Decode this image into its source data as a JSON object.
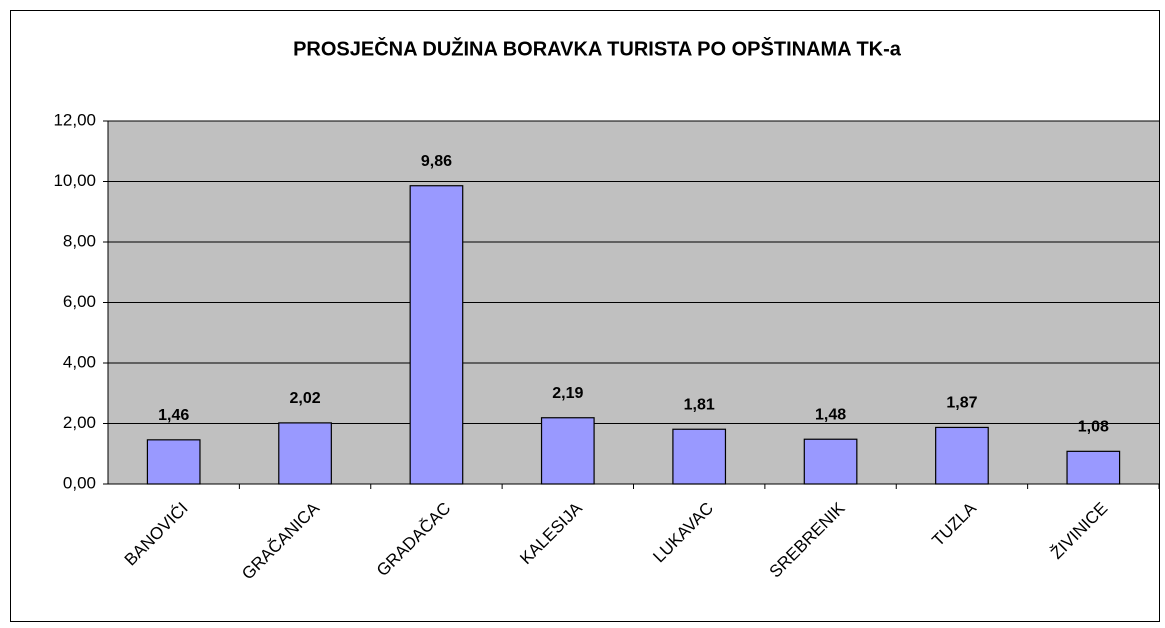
{
  "chart_data": {
    "type": "bar",
    "title": "PROSJEČNA DUŽINA BORAVKA TURISTA PO OPŠTINAMA TK-a",
    "categories": [
      "BANOVIĆI",
      "GRAČANICA",
      "GRADAČAC",
      "KALESIJA",
      "LUKAVAC",
      "SREBRENIK",
      "TUZLA",
      "ŽIVINICE"
    ],
    "values": [
      1.46,
      2.02,
      9.86,
      2.19,
      1.81,
      1.48,
      1.87,
      1.08
    ],
    "value_labels": [
      "1,46",
      "2,02",
      "9,86",
      "2,19",
      "1,81",
      "1,48",
      "1,87",
      "1,08"
    ],
    "color": "#9999ff",
    "ylim": [
      0,
      12
    ],
    "yticks": [
      {
        "value": 0,
        "label": "0,00"
      },
      {
        "value": 2,
        "label": "2,00"
      },
      {
        "value": 4,
        "label": "4,00"
      },
      {
        "value": 6,
        "label": "6,00"
      },
      {
        "value": 8,
        "label": "8,00"
      },
      {
        "value": 10,
        "label": "10,00"
      },
      {
        "value": 12,
        "label": "12,00"
      }
    ],
    "grid": true
  }
}
